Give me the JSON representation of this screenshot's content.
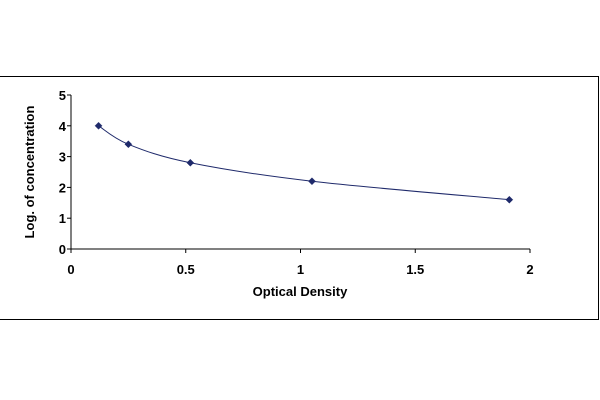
{
  "chart_data": {
    "type": "scatter",
    "title": "",
    "xlabel": "Optical Density",
    "ylabel": "Log. of concentration",
    "xlim": [
      0,
      2
    ],
    "ylim": [
      0,
      5
    ],
    "x_ticks": [
      "0",
      "0.5",
      "1",
      "1.5",
      "2"
    ],
    "y_ticks": [
      "0",
      "1",
      "2",
      "3",
      "4",
      "5"
    ],
    "grid": false,
    "legend": "none",
    "marker": "diamond",
    "marker_color": "#1f2a6b",
    "line_color": "#1f2a6b",
    "fit_line": "smooth",
    "series": [
      {
        "x": [
          0.12,
          0.25,
          0.52,
          1.05,
          1.91
        ],
        "y": [
          4.0,
          3.4,
          2.8,
          2.2,
          1.6
        ]
      }
    ]
  }
}
